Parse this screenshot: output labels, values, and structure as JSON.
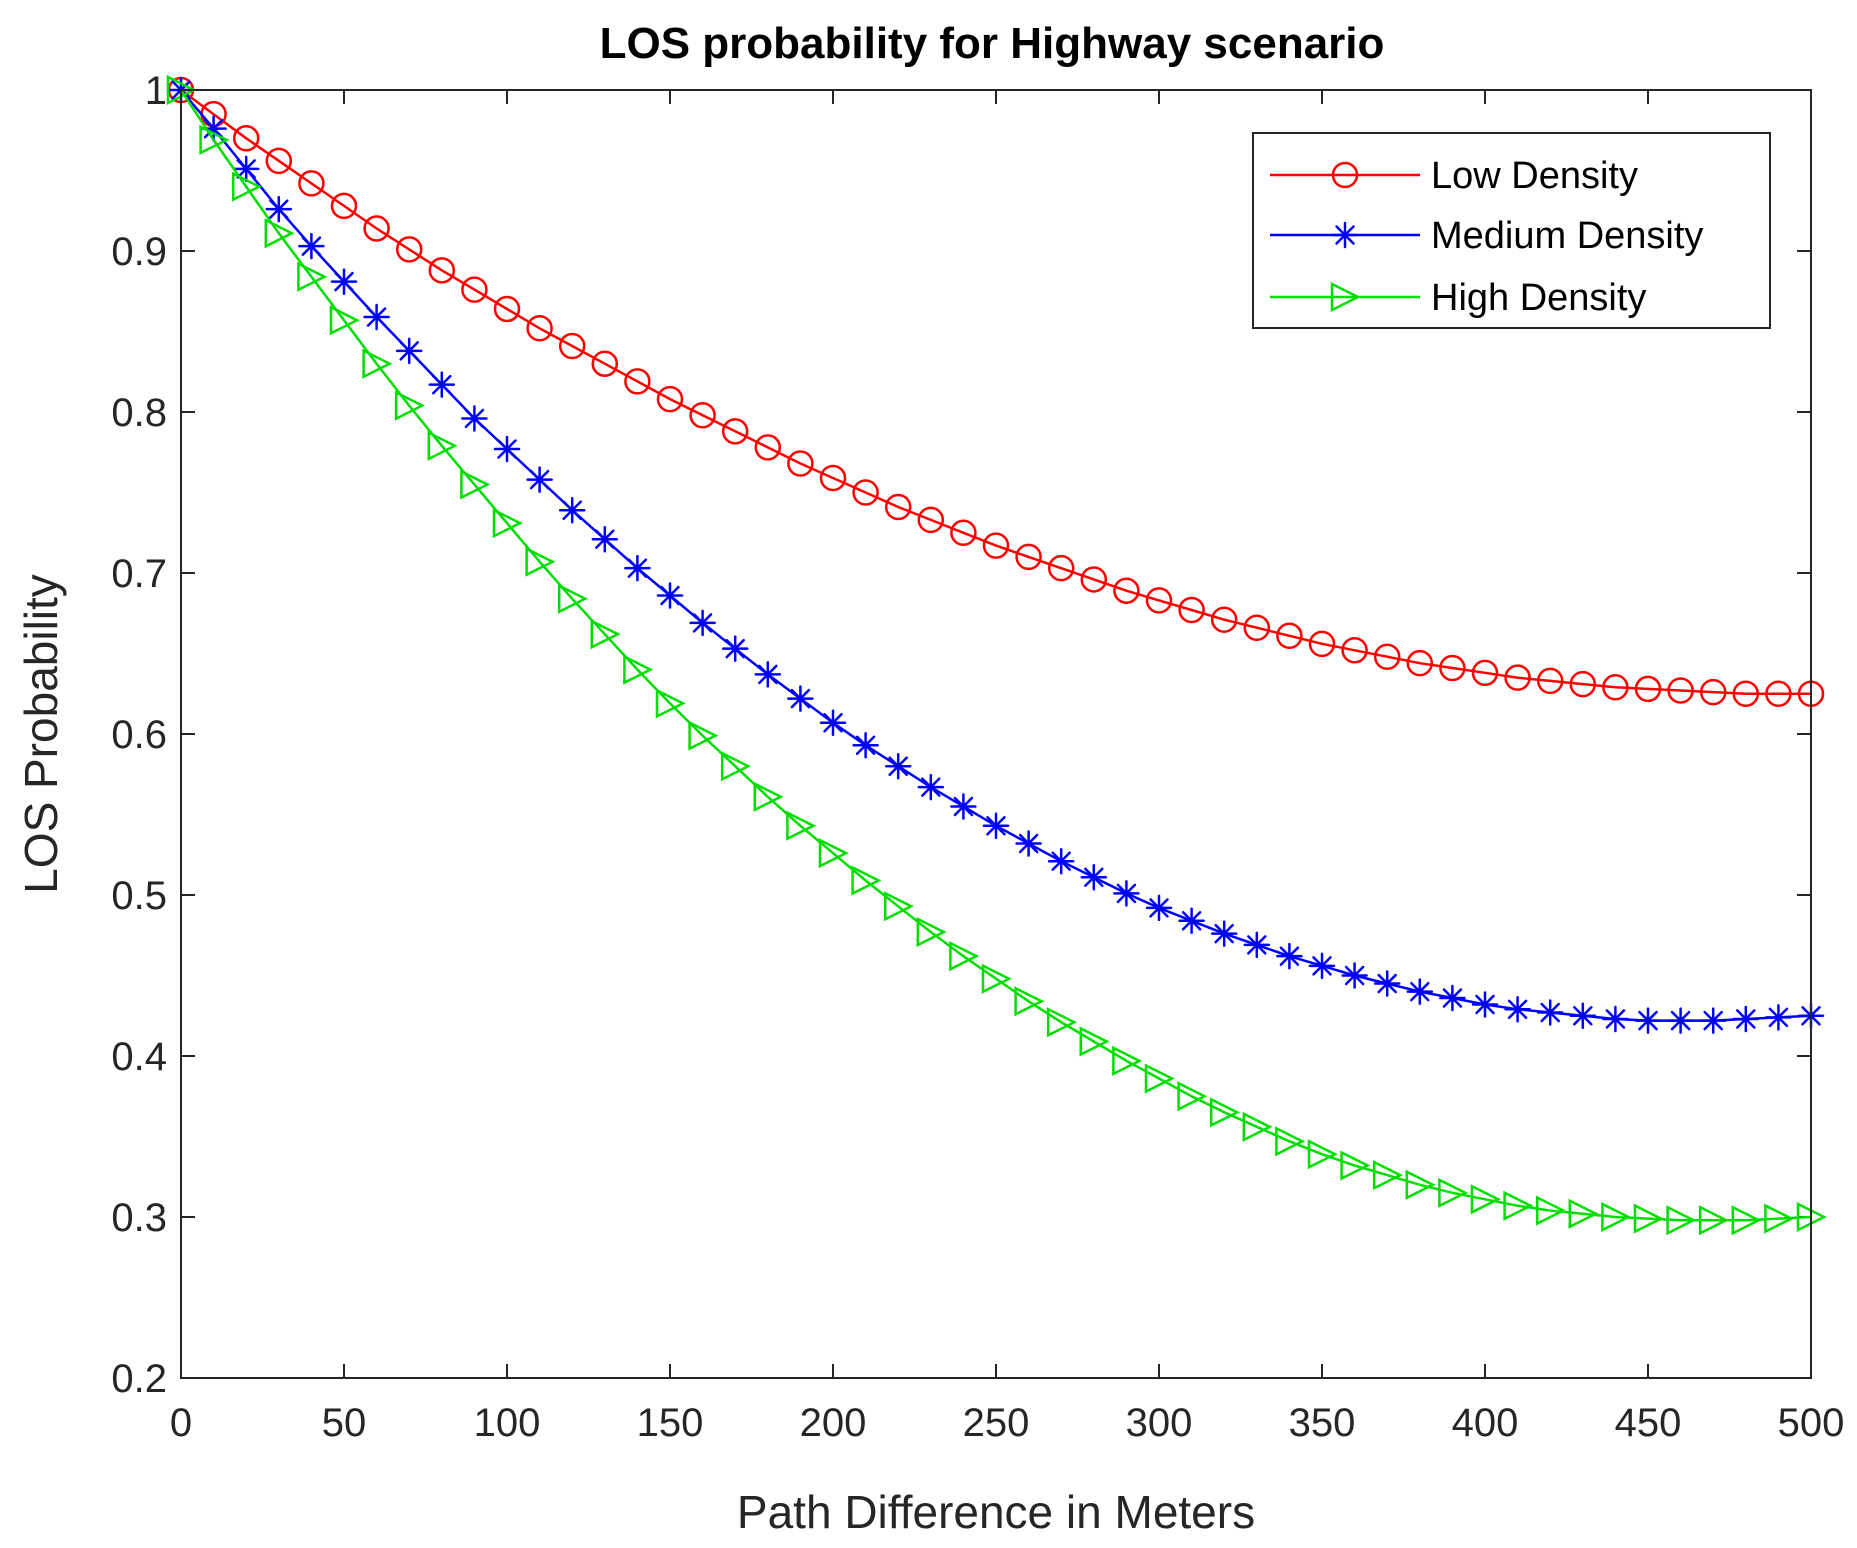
{
  "chart_data": {
    "type": "line",
    "title": "LOS probability for Highway scenario",
    "xlabel": "Path Difference in Meters",
    "ylabel": "LOS Probability",
    "xlim": [
      0,
      500
    ],
    "ylim": [
      0.2,
      1
    ],
    "xticks": [
      0,
      50,
      100,
      150,
      200,
      250,
      300,
      350,
      400,
      450,
      500
    ],
    "xtick_labels": [
      "0",
      "50",
      "100",
      "150",
      "200",
      "250",
      "300",
      "350",
      "400",
      "450",
      "500"
    ],
    "yticks": [
      0.2,
      0.3,
      0.4,
      0.5,
      0.6,
      0.7,
      0.8,
      0.9,
      1
    ],
    "ytick_labels": [
      "0.2",
      "0.3",
      "0.4",
      "0.5",
      "0.6",
      "0.7",
      "0.8",
      "0.9",
      "1"
    ],
    "grid": false,
    "legend_position": "top-right",
    "x": [
      0,
      10,
      20,
      30,
      40,
      50,
      60,
      70,
      80,
      90,
      100,
      110,
      120,
      130,
      140,
      150,
      160,
      170,
      180,
      190,
      200,
      210,
      220,
      230,
      240,
      250,
      260,
      270,
      280,
      290,
      300,
      310,
      320,
      330,
      340,
      350,
      360,
      370,
      380,
      390,
      400,
      410,
      420,
      430,
      440,
      450,
      460,
      470,
      480,
      490,
      500
    ],
    "series": [
      {
        "name": "Low Density",
        "color": "#ff0000",
        "marker": "circle",
        "values": [
          1.0,
          0.985,
          0.97,
          0.956,
          0.942,
          0.928,
          0.914,
          0.901,
          0.888,
          0.876,
          0.864,
          0.852,
          0.841,
          0.83,
          0.819,
          0.808,
          0.798,
          0.788,
          0.778,
          0.768,
          0.759,
          0.75,
          0.741,
          0.733,
          0.725,
          0.717,
          0.71,
          0.703,
          0.696,
          0.689,
          0.683,
          0.677,
          0.671,
          0.666,
          0.661,
          0.656,
          0.652,
          0.648,
          0.644,
          0.641,
          0.638,
          0.635,
          0.633,
          0.631,
          0.629,
          0.628,
          0.627,
          0.626,
          0.625,
          0.625,
          0.625
        ]
      },
      {
        "name": "Medium Density",
        "color": "#0000ff",
        "marker": "asterisk",
        "values": [
          1.0,
          0.976,
          0.951,
          0.926,
          0.903,
          0.881,
          0.859,
          0.838,
          0.817,
          0.796,
          0.777,
          0.758,
          0.739,
          0.721,
          0.703,
          0.686,
          0.669,
          0.653,
          0.637,
          0.622,
          0.607,
          0.593,
          0.58,
          0.567,
          0.555,
          0.543,
          0.532,
          0.521,
          0.511,
          0.501,
          0.492,
          0.484,
          0.476,
          0.469,
          0.462,
          0.456,
          0.45,
          0.445,
          0.44,
          0.436,
          0.432,
          0.429,
          0.427,
          0.425,
          0.423,
          0.422,
          0.422,
          0.422,
          0.423,
          0.424,
          0.425
        ]
      },
      {
        "name": "High Density",
        "color": "#00dd00",
        "marker": "triangle-right",
        "values": [
          1.0,
          0.969,
          0.94,
          0.911,
          0.884,
          0.857,
          0.83,
          0.804,
          0.779,
          0.755,
          0.731,
          0.707,
          0.684,
          0.662,
          0.64,
          0.619,
          0.599,
          0.58,
          0.561,
          0.543,
          0.526,
          0.509,
          0.493,
          0.477,
          0.462,
          0.448,
          0.434,
          0.421,
          0.409,
          0.397,
          0.386,
          0.375,
          0.365,
          0.356,
          0.347,
          0.339,
          0.332,
          0.326,
          0.32,
          0.315,
          0.311,
          0.307,
          0.304,
          0.302,
          0.3,
          0.299,
          0.298,
          0.298,
          0.298,
          0.299,
          0.3
        ]
      }
    ]
  }
}
